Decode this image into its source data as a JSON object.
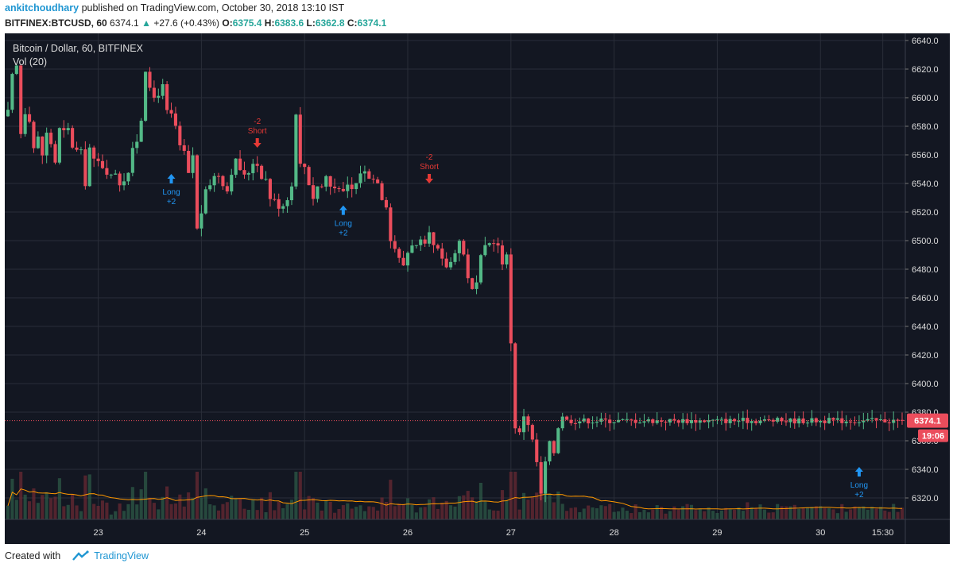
{
  "header": {
    "author": "ankitchoudhary",
    "published_text": "published on TradingView.com, October 30, 2018 13:10 IST",
    "symbol": "BITFINEX:BTCUSD, 60",
    "last": "6374.1",
    "change_arrow": "▲",
    "change": "+27.6 (+0.43%)",
    "o_label": "O:",
    "o_value": "6375.4",
    "h_label": "H:",
    "h_value": "6383.6",
    "l_label": "L:",
    "l_value": "6362.8",
    "c_label": "C:",
    "c_value": "6374.1"
  },
  "legend": {
    "title": "Bitcoin / Dollar, 60, BITFINEX",
    "volume": "Vol (20)"
  },
  "price_label": {
    "value": "6374.1",
    "time": "19:06"
  },
  "footer": {
    "created_with": "Created with",
    "brand": "TradingView"
  },
  "colors": {
    "background": "#131722",
    "up": "#53b987",
    "down": "#eb4d5c",
    "grid": "#2a2e39",
    "long": "#2196f3",
    "short": "#e53935",
    "vol_ma": "#ff9800",
    "axis_text": "#dddddd",
    "price_line": "#eb4d5c"
  },
  "chart_data": {
    "type": "candlestick",
    "title": "Bitcoin / Dollar, 60, BITFINEX",
    "y_range": [
      6305,
      6645
    ],
    "y_ticks": [
      6320,
      6340,
      6360,
      6380,
      6400,
      6420,
      6440,
      6460,
      6480,
      6500,
      6520,
      6540,
      6560,
      6580,
      6600,
      6620,
      6640
    ],
    "x_ticks": [
      {
        "label": "23",
        "hour": 21
      },
      {
        "label": "24",
        "hour": 45
      },
      {
        "label": "25",
        "hour": 69
      },
      {
        "label": "26",
        "hour": 93
      },
      {
        "label": "27",
        "hour": 117
      },
      {
        "label": "28",
        "hour": 141
      },
      {
        "label": "29",
        "hour": 165
      },
      {
        "label": "30",
        "hour": 189
      },
      {
        "label": "15:30",
        "hour": 203.5
      }
    ],
    "hours": 208,
    "last_price": 6374.1,
    "close_path": [
      [
        0,
        6590
      ],
      [
        2,
        6615
      ],
      [
        4,
        6622
      ],
      [
        6,
        6575
      ],
      [
        8,
        6590
      ],
      [
        10,
        6585
      ],
      [
        12,
        6565
      ],
      [
        14,
        6572
      ],
      [
        16,
        6560
      ],
      [
        18,
        6575
      ],
      [
        20,
        6568
      ],
      [
        22,
        6555
      ],
      [
        24,
        6578
      ],
      [
        26,
        6576
      ],
      [
        28,
        6578
      ],
      [
        30,
        6566
      ],
      [
        32,
        6563
      ],
      [
        34,
        6562
      ],
      [
        36,
        6540
      ],
      [
        38,
        6565
      ],
      [
        40,
        6556
      ],
      [
        42,
        6555
      ],
      [
        44,
        6552
      ],
      [
        46,
        6548
      ],
      [
        48,
        6545
      ],
      [
        50,
        6548
      ],
      [
        52,
        6540
      ],
      [
        54,
        6543
      ],
      [
        56,
        6548
      ],
      [
        58,
        6563
      ],
      [
        60,
        6570
      ],
      [
        62,
        6585
      ],
      [
        64,
        6620
      ],
      [
        66,
        6605
      ],
      [
        68,
        6600
      ],
      [
        70,
        6603
      ],
      [
        72,
        6608
      ],
      [
        74,
        6590
      ],
      [
        76,
        6588
      ],
      [
        78,
        6580
      ],
      [
        80,
        6565
      ],
      [
        82,
        6562
      ],
      [
        84,
        6546
      ],
      [
        86,
        6560
      ],
      [
        88,
        6508
      ],
      [
        90,
        6520
      ],
      [
        92,
        6534
      ],
      [
        94,
        6540
      ],
      [
        96,
        6545
      ],
      [
        98,
        6546
      ],
      [
        100,
        6540
      ],
      [
        102,
        6535
      ],
      [
        104,
        6548
      ],
      [
        106,
        6556
      ],
      [
        108,
        6550
      ],
      [
        110,
        6545
      ],
      [
        112,
        6548
      ],
      [
        114,
        6555
      ],
      [
        116,
        6553
      ],
      [
        118,
        6545
      ],
      [
        120,
        6543
      ],
      [
        122,
        6530
      ],
      [
        124,
        6528
      ],
      [
        126,
        6524
      ],
      [
        128,
        6525
      ],
      [
        130,
        6530
      ],
      [
        132,
        6538
      ],
      [
        134,
        6590
      ],
      [
        136,
        6553
      ],
      [
        138,
        6552
      ],
      [
        140,
        6540
      ],
      [
        142,
        6530
      ],
      [
        144,
        6538
      ],
      [
        146,
        6538
      ],
      [
        148,
        6545
      ],
      [
        150,
        6538
      ],
      [
        152,
        6537
      ],
      [
        154,
        6538
      ],
      [
        156,
        6533
      ],
      [
        158,
        6538
      ],
      [
        160,
        6536
      ],
      [
        162,
        6540
      ],
      [
        164,
        6548
      ],
      [
        166,
        6548
      ],
      [
        168,
        6545
      ],
      [
        170,
        6543
      ],
      [
        172,
        6542
      ],
      [
        174,
        6530
      ],
      [
        176,
        6525
      ],
      [
        178,
        6500
      ],
      [
        180,
        6495
      ],
      [
        182,
        6487
      ],
      [
        184,
        6483
      ],
      [
        186,
        6492
      ],
      [
        188,
        6498
      ],
      [
        190,
        6496
      ],
      [
        192,
        6499
      ],
      [
        194,
        6496
      ],
      [
        196,
        6504
      ],
      [
        198,
        6496
      ],
      [
        200,
        6493
      ],
      [
        202,
        6486
      ],
      [
        204,
        6482
      ],
      [
        206,
        6485
      ],
      [
        208,
        6493
      ],
      [
        210,
        6500
      ],
      [
        212,
        6490
      ],
      [
        214,
        6475
      ],
      [
        216,
        6465
      ],
      [
        218,
        6470
      ],
      [
        220,
        6488
      ],
      [
        222,
        6495
      ],
      [
        224,
        6498
      ],
      [
        226,
        6500
      ],
      [
        228,
        6496
      ],
      [
        230,
        6482
      ],
      [
        232,
        6492
      ],
      [
        234,
        6428
      ],
      [
        236,
        6370
      ],
      [
        238,
        6365
      ],
      [
        240,
        6378
      ],
      [
        242,
        6372
      ],
      [
        244,
        6360
      ],
      [
        246,
        6345
      ],
      [
        248,
        6322
      ],
      [
        250,
        6345
      ],
      [
        252,
        6358
      ],
      [
        254,
        6352
      ],
      [
        256,
        6370
      ],
      [
        258,
        6378
      ],
      [
        260,
        6374.1
      ]
    ],
    "markers": [
      {
        "type": "Long",
        "qty": "+2",
        "hour": 38,
        "price": 6550
      },
      {
        "type": "Short",
        "qty": "-2",
        "hour": 58,
        "price": 6565
      },
      {
        "type": "Long",
        "qty": "+2",
        "hour": 78,
        "price": 6528
      },
      {
        "type": "Short",
        "qty": "-2",
        "hour": 98,
        "price": 6540
      },
      {
        "type": "Long",
        "qty": "+2",
        "hour": 198,
        "price": 6345
      }
    ],
    "volume_label": "Vol (20)"
  }
}
